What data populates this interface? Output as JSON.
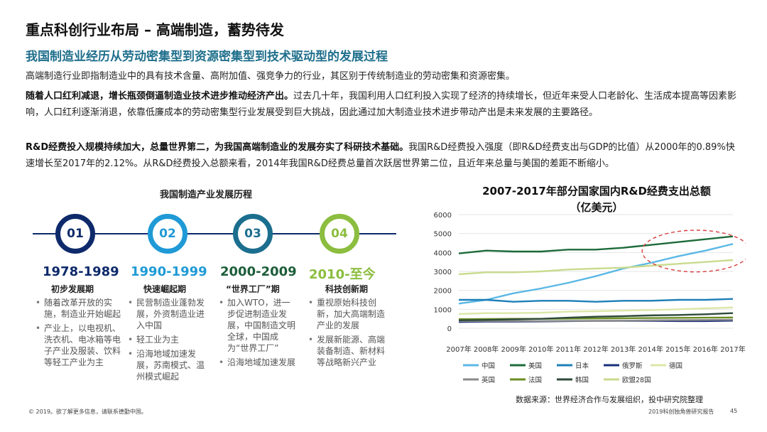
{
  "header": {
    "title": "重点科创行业布局 – 高端制造，蓄势待发",
    "subtitle": "我国制造业经历从劳动密集型到资源密集型到技术驱动型的发展过程"
  },
  "body": {
    "p1": "高端制造行业即指制造业中的具有技术含量、高附加值、强竞争力的行业，其区别于传统制造业的劳动密集和资源密集。",
    "p2_bold": "随着人口红利减退，增长瓶颈倒逼制造业技术进步推动经济产出。",
    "p2_rest": "过去几十年，我国利用人口红利投入实现了经济的持续增长，但近年来受人口老龄化、生活成本提高等因素影响，人口红利逐渐消退，依靠低廉成本的劳动密集型行业发展受到巨大挑战，因此通过加大制造业技术进步带动产出是未来发展的主要路径。",
    "p3_bold": "R&D经费投入规模持续加大，总量世界第二，为我国高端制造业的发展夯实了科研技术基础。",
    "p3_rest": "我国R&D经费投入强度（即R&D经费支出与GDP的比值）从2000年的0.89%快速增长至2017年的2.12%。从R&D经费投入总额来看，2014年我国R&D经费总量首次跃居世界第二位，且近年来总量与美国的差距不断缩小。"
  },
  "timeline": {
    "title": "我国制造产业发展历程",
    "stages": [
      {
        "num": "01",
        "period": "1978-1989",
        "phase": "初步发展期",
        "color": "#0e2a6b",
        "bullets": [
          "随着改革开放的实施，制造业开始崛起",
          "产业上，以电视机、洗衣机、电冰箱等电子产业及服装、饮料等轻工产业为主"
        ]
      },
      {
        "num": "02",
        "period": "1990-1999",
        "phase": "快速崛起期",
        "color": "#1f9ad6",
        "bullets": [
          "民营制造业蓬勃发展，外资制造业进入中国",
          "轻工业为主",
          "沿海地域加速发展，苏南模式、温州模式崛起"
        ]
      },
      {
        "num": "03",
        "period": "2000-2009",
        "phase": "“世界工厂”期",
        "color": "#1b6e8e",
        "bullets": [
          "加入WTO，进一步促进制造业发展，中国制造文明全球，中国成为“世界工厂”",
          "沿海地域加速发展"
        ]
      },
      {
        "num": "04",
        "period": "2010-至今",
        "phase": "科技创新期",
        "color": "#8cbd3f",
        "bullets": [
          "重视原始科技创新，加大高端制造产业的发展",
          "发展新能源、高端装备制造、新材料等战略新兴产业"
        ]
      }
    ]
  },
  "chart_data": {
    "type": "line",
    "title": "2007-2017年部分国家国内R&D经费支出总额",
    "title_unit": "（亿美元）",
    "x": [
      "2007年",
      "2008年",
      "2009年",
      "2010年",
      "2011年",
      "2012年",
      "2013年",
      "2014年",
      "2015年",
      "2016年",
      "2017年"
    ],
    "ylim": [
      0,
      6000
    ],
    "yticks": [
      0,
      1000,
      2000,
      3000,
      4000,
      5000,
      6000
    ],
    "grid": true,
    "legend_position": "bottom",
    "series": [
      {
        "name": "中国",
        "color": "#5bb8e6",
        "values": [
          1300,
          1500,
          1850,
          2100,
          2400,
          2750,
          3150,
          3450,
          3800,
          4100,
          4450
        ]
      },
      {
        "name": "美国",
        "color": "#1d6b3a",
        "values": [
          3950,
          4100,
          4050,
          4050,
          4150,
          4150,
          4250,
          4400,
          4550,
          4700,
          4850
        ]
      },
      {
        "name": "日本",
        "color": "#1e7fb8",
        "values": [
          1500,
          1500,
          1400,
          1450,
          1450,
          1400,
          1450,
          1450,
          1500,
          1500,
          1550
        ]
      },
      {
        "name": "俄罗斯",
        "color": "#1a2f7a",
        "values": [
          330,
          350,
          350,
          360,
          380,
          390,
          390,
          390,
          380,
          380,
          400
        ]
      },
      {
        "name": "德国",
        "color": "#dbe8a8",
        "values": [
          750,
          800,
          800,
          820,
          880,
          900,
          930,
          960,
          1000,
          1050,
          1100
        ]
      },
      {
        "name": "英国",
        "color": "#8a8a8a",
        "values": [
          380,
          380,
          380,
          380,
          390,
          390,
          400,
          420,
          430,
          440,
          450
        ]
      },
      {
        "name": "法国",
        "color": "#6b8e23",
        "values": [
          480,
          490,
          500,
          500,
          510,
          520,
          530,
          540,
          550,
          560,
          570
        ]
      },
      {
        "name": "韩国",
        "color": "#2e4a3a",
        "values": [
          420,
          440,
          470,
          500,
          560,
          610,
          640,
          680,
          700,
          740,
          800
        ]
      },
      {
        "name": "欧盟28国",
        "color": "#c9db8e",
        "values": [
          2850,
          2950,
          2950,
          3000,
          3100,
          3150,
          3200,
          3300,
          3400,
          3500,
          3600
        ]
      }
    ],
    "annotation": "dashed-ellipse-highlight"
  },
  "footer": {
    "source": "数据来源：世界经济合作与发展组织，投中研究院整理",
    "left": "© 2019。欲了解更多信息，请联系德勤中国。",
    "right": "2019科创独角兽研究报告",
    "page": "45"
  }
}
